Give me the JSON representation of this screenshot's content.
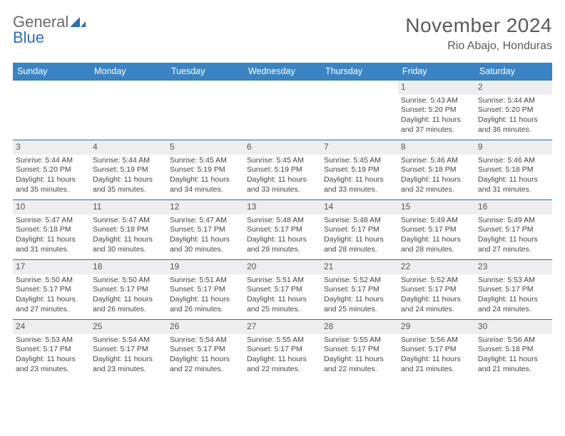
{
  "brand": {
    "general": "General",
    "blue": "Blue"
  },
  "title": "November 2024",
  "location": "Rio Abajo, Honduras",
  "colors": {
    "header_bg": "#3b84c4",
    "header_text": "#ffffff",
    "rule": "#2f6fb0",
    "daynum_bg": "#eeeeee",
    "text": "#444444",
    "title_text": "#5a5a5a"
  },
  "typography": {
    "title_fontsize": 28,
    "location_fontsize": 16,
    "dow_fontsize": 12.5,
    "cell_fontsize": 10.5,
    "daynum_fontsize": 12
  },
  "dow": [
    "Sunday",
    "Monday",
    "Tuesday",
    "Wednesday",
    "Thursday",
    "Friday",
    "Saturday"
  ],
  "weeks": [
    [
      {
        "n": "",
        "sr": "",
        "ss": "",
        "dl1": "",
        "dl2": ""
      },
      {
        "n": "",
        "sr": "",
        "ss": "",
        "dl1": "",
        "dl2": ""
      },
      {
        "n": "",
        "sr": "",
        "ss": "",
        "dl1": "",
        "dl2": ""
      },
      {
        "n": "",
        "sr": "",
        "ss": "",
        "dl1": "",
        "dl2": ""
      },
      {
        "n": "",
        "sr": "",
        "ss": "",
        "dl1": "",
        "dl2": ""
      },
      {
        "n": "1",
        "sr": "Sunrise: 5:43 AM",
        "ss": "Sunset: 5:20 PM",
        "dl1": "Daylight: 11 hours",
        "dl2": "and 37 minutes."
      },
      {
        "n": "2",
        "sr": "Sunrise: 5:44 AM",
        "ss": "Sunset: 5:20 PM",
        "dl1": "Daylight: 11 hours",
        "dl2": "and 36 minutes."
      }
    ],
    [
      {
        "n": "3",
        "sr": "Sunrise: 5:44 AM",
        "ss": "Sunset: 5:20 PM",
        "dl1": "Daylight: 11 hours",
        "dl2": "and 35 minutes."
      },
      {
        "n": "4",
        "sr": "Sunrise: 5:44 AM",
        "ss": "Sunset: 5:19 PM",
        "dl1": "Daylight: 11 hours",
        "dl2": "and 35 minutes."
      },
      {
        "n": "5",
        "sr": "Sunrise: 5:45 AM",
        "ss": "Sunset: 5:19 PM",
        "dl1": "Daylight: 11 hours",
        "dl2": "and 34 minutes."
      },
      {
        "n": "6",
        "sr": "Sunrise: 5:45 AM",
        "ss": "Sunset: 5:19 PM",
        "dl1": "Daylight: 11 hours",
        "dl2": "and 33 minutes."
      },
      {
        "n": "7",
        "sr": "Sunrise: 5:45 AM",
        "ss": "Sunset: 5:19 PM",
        "dl1": "Daylight: 11 hours",
        "dl2": "and 33 minutes."
      },
      {
        "n": "8",
        "sr": "Sunrise: 5:46 AM",
        "ss": "Sunset: 5:18 PM",
        "dl1": "Daylight: 11 hours",
        "dl2": "and 32 minutes."
      },
      {
        "n": "9",
        "sr": "Sunrise: 5:46 AM",
        "ss": "Sunset: 5:18 PM",
        "dl1": "Daylight: 11 hours",
        "dl2": "and 31 minutes."
      }
    ],
    [
      {
        "n": "10",
        "sr": "Sunrise: 5:47 AM",
        "ss": "Sunset: 5:18 PM",
        "dl1": "Daylight: 11 hours",
        "dl2": "and 31 minutes."
      },
      {
        "n": "11",
        "sr": "Sunrise: 5:47 AM",
        "ss": "Sunset: 5:18 PM",
        "dl1": "Daylight: 11 hours",
        "dl2": "and 30 minutes."
      },
      {
        "n": "12",
        "sr": "Sunrise: 5:47 AM",
        "ss": "Sunset: 5:17 PM",
        "dl1": "Daylight: 11 hours",
        "dl2": "and 30 minutes."
      },
      {
        "n": "13",
        "sr": "Sunrise: 5:48 AM",
        "ss": "Sunset: 5:17 PM",
        "dl1": "Daylight: 11 hours",
        "dl2": "and 29 minutes."
      },
      {
        "n": "14",
        "sr": "Sunrise: 5:48 AM",
        "ss": "Sunset: 5:17 PM",
        "dl1": "Daylight: 11 hours",
        "dl2": "and 28 minutes."
      },
      {
        "n": "15",
        "sr": "Sunrise: 5:49 AM",
        "ss": "Sunset: 5:17 PM",
        "dl1": "Daylight: 11 hours",
        "dl2": "and 28 minutes."
      },
      {
        "n": "16",
        "sr": "Sunrise: 5:49 AM",
        "ss": "Sunset: 5:17 PM",
        "dl1": "Daylight: 11 hours",
        "dl2": "and 27 minutes."
      }
    ],
    [
      {
        "n": "17",
        "sr": "Sunrise: 5:50 AM",
        "ss": "Sunset: 5:17 PM",
        "dl1": "Daylight: 11 hours",
        "dl2": "and 27 minutes."
      },
      {
        "n": "18",
        "sr": "Sunrise: 5:50 AM",
        "ss": "Sunset: 5:17 PM",
        "dl1": "Daylight: 11 hours",
        "dl2": "and 26 minutes."
      },
      {
        "n": "19",
        "sr": "Sunrise: 5:51 AM",
        "ss": "Sunset: 5:17 PM",
        "dl1": "Daylight: 11 hours",
        "dl2": "and 26 minutes."
      },
      {
        "n": "20",
        "sr": "Sunrise: 5:51 AM",
        "ss": "Sunset: 5:17 PM",
        "dl1": "Daylight: 11 hours",
        "dl2": "and 25 minutes."
      },
      {
        "n": "21",
        "sr": "Sunrise: 5:52 AM",
        "ss": "Sunset: 5:17 PM",
        "dl1": "Daylight: 11 hours",
        "dl2": "and 25 minutes."
      },
      {
        "n": "22",
        "sr": "Sunrise: 5:52 AM",
        "ss": "Sunset: 5:17 PM",
        "dl1": "Daylight: 11 hours",
        "dl2": "and 24 minutes."
      },
      {
        "n": "23",
        "sr": "Sunrise: 5:53 AM",
        "ss": "Sunset: 5:17 PM",
        "dl1": "Daylight: 11 hours",
        "dl2": "and 24 minutes."
      }
    ],
    [
      {
        "n": "24",
        "sr": "Sunrise: 5:53 AM",
        "ss": "Sunset: 5:17 PM",
        "dl1": "Daylight: 11 hours",
        "dl2": "and 23 minutes."
      },
      {
        "n": "25",
        "sr": "Sunrise: 5:54 AM",
        "ss": "Sunset: 5:17 PM",
        "dl1": "Daylight: 11 hours",
        "dl2": "and 23 minutes."
      },
      {
        "n": "26",
        "sr": "Sunrise: 5:54 AM",
        "ss": "Sunset: 5:17 PM",
        "dl1": "Daylight: 11 hours",
        "dl2": "and 22 minutes."
      },
      {
        "n": "27",
        "sr": "Sunrise: 5:55 AM",
        "ss": "Sunset: 5:17 PM",
        "dl1": "Daylight: 11 hours",
        "dl2": "and 22 minutes."
      },
      {
        "n": "28",
        "sr": "Sunrise: 5:55 AM",
        "ss": "Sunset: 5:17 PM",
        "dl1": "Daylight: 11 hours",
        "dl2": "and 22 minutes."
      },
      {
        "n": "29",
        "sr": "Sunrise: 5:56 AM",
        "ss": "Sunset: 5:17 PM",
        "dl1": "Daylight: 11 hours",
        "dl2": "and 21 minutes."
      },
      {
        "n": "30",
        "sr": "Sunrise: 5:56 AM",
        "ss": "Sunset: 5:18 PM",
        "dl1": "Daylight: 11 hours",
        "dl2": "and 21 minutes."
      }
    ]
  ]
}
